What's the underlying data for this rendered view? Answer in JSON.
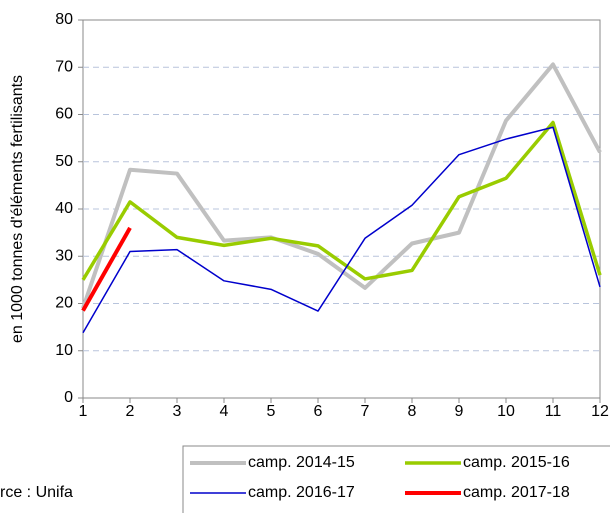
{
  "chart_data": {
    "type": "line",
    "y_label": "en 1000 tonnes d'éléments fertilisants",
    "source": "rce : Unifa",
    "x": [
      1,
      2,
      3,
      4,
      5,
      6,
      7,
      8,
      9,
      10,
      11,
      12
    ],
    "xlim": [
      1,
      12
    ],
    "xticks": [
      1,
      2,
      3,
      4,
      5,
      6,
      7,
      8,
      9,
      10,
      11,
      12
    ],
    "ylim": [
      0,
      80
    ],
    "yticks": [
      0,
      10,
      20,
      30,
      40,
      50,
      60,
      70,
      80
    ],
    "grid": true,
    "legend": "bottom",
    "series": [
      {
        "name": "camp. 2014-15",
        "color": "#c0c0c0",
        "width": 4,
        "values": [
          19,
          48.3,
          47.5,
          33.3,
          34,
          30.5,
          23.3,
          32.7,
          35,
          58.7,
          70.6,
          52
        ]
      },
      {
        "name": "camp. 2015-16",
        "color": "#99cc00",
        "width": 3.5,
        "values": [
          25,
          41.5,
          34,
          32.3,
          33.8,
          32.2,
          25.2,
          27,
          42.6,
          46.5,
          58.3,
          26
        ]
      },
      {
        "name": "camp. 2016-17",
        "color": "#0000cc",
        "width": 1.5,
        "values": [
          13.8,
          31,
          31.4,
          24.8,
          23,
          18.4,
          33.8,
          40.8,
          51.5,
          54.8,
          57.3,
          23.5
        ]
      },
      {
        "name": "camp. 2017-18",
        "color": "#ff0000",
        "width": 4,
        "values": [
          18.5,
          36,
          null,
          null,
          null,
          null,
          null,
          null,
          null,
          null,
          null,
          null
        ]
      }
    ]
  }
}
